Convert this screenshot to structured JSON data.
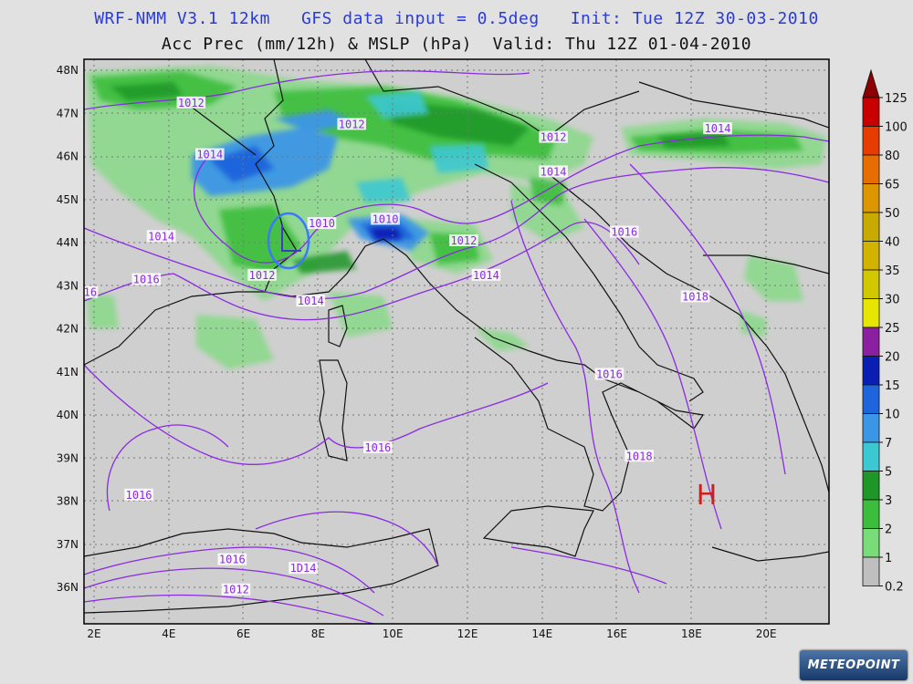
{
  "title": {
    "line1": "WRF-NMM V3.1 12km   GFS data input = 0.5deg   Init: Tue 12Z 30-03-2010",
    "line2": "Acc Prec (mm/12h) & MSLP (hPa)  Valid: Thu 12Z 01-04-2010"
  },
  "map": {
    "lon_labels": [
      "2E",
      "4E",
      "6E",
      "8E",
      "10E",
      "12E",
      "14E",
      "16E",
      "18E",
      "20E"
    ],
    "lat_labels": [
      "48N",
      "47N",
      "46N",
      "45N",
      "44N",
      "43N",
      "42N",
      "41N",
      "40N",
      "39N",
      "38N",
      "37N",
      "36N"
    ],
    "high_marker": "H",
    "isobar_labels": [
      {
        "text": "1012",
        "lon": 4.6,
        "lat": 47.2
      },
      {
        "text": "1014",
        "lon": 5.1,
        "lat": 46.0
      },
      {
        "text": "1012",
        "lon": 8.9,
        "lat": 46.7
      },
      {
        "text": "1012",
        "lon": 14.3,
        "lat": 46.4
      },
      {
        "text": "1014",
        "lon": 18.7,
        "lat": 46.6
      },
      {
        "text": "1014",
        "lon": 14.3,
        "lat": 45.6
      },
      {
        "text": "1010",
        "lon": 9.8,
        "lat": 44.5
      },
      {
        "text": "1010",
        "lon": 8.1,
        "lat": 44.4
      },
      {
        "text": "1012",
        "lon": 11.9,
        "lat": 44.0
      },
      {
        "text": "1014",
        "lon": 3.8,
        "lat": 44.1
      },
      {
        "text": "1016",
        "lon": 16.2,
        "lat": 44.2
      },
      {
        "text": "1012",
        "lon": 6.5,
        "lat": 43.2
      },
      {
        "text": "1014",
        "lon": 12.5,
        "lat": 43.2
      },
      {
        "text": "1016",
        "lon": 3.4,
        "lat": 43.1
      },
      {
        "text": "1014",
        "lon": 7.8,
        "lat": 42.6
      },
      {
        "text": "1018",
        "lon": 18.1,
        "lat": 42.7
      },
      {
        "text": "16",
        "lon": 1.9,
        "lat": 42.8
      },
      {
        "text": "1016",
        "lon": 15.8,
        "lat": 40.9
      },
      {
        "text": "1016",
        "lon": 9.6,
        "lat": 39.2
      },
      {
        "text": "1018",
        "lon": 16.6,
        "lat": 39.0
      },
      {
        "text": "1016",
        "lon": 3.2,
        "lat": 38.1
      },
      {
        "text": "1016",
        "lon": 5.7,
        "lat": 36.6
      },
      {
        "text": "1D14",
        "lon": 7.6,
        "lat": 36.4
      },
      {
        "text": "1012",
        "lon": 5.8,
        "lat": 35.9
      }
    ]
  },
  "colorbar": {
    "labels": [
      "125",
      "100",
      "80",
      "65",
      "50",
      "40",
      "35",
      "30",
      "25",
      "20",
      "15",
      "10",
      "7",
      "5",
      "3",
      "2",
      "1",
      "0.2"
    ],
    "colors": [
      "#8b0000",
      "#c80000",
      "#e63c00",
      "#e66e00",
      "#dc9600",
      "#c8aa00",
      "#d2b400",
      "#d2c800",
      "#e6e600",
      "#8c1ea0",
      "#0a1eb4",
      "#1e64dc",
      "#3c96e6",
      "#3cc8d2",
      "#1e9628",
      "#3cbe3c",
      "#78dc78",
      "#bfbfbf"
    ]
  },
  "logo": "METEOPOINT"
}
